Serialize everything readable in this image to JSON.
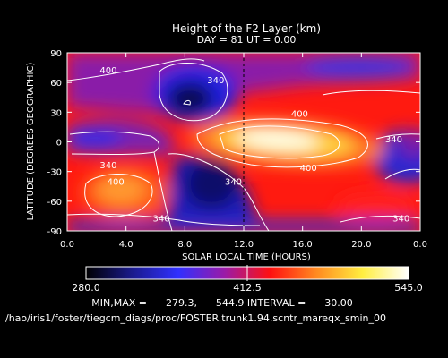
{
  "chart_data": {
    "type": "heatmap",
    "title": "Height of the F2 Layer (km)",
    "subtitle": "DAY =  81   UT =  0.00",
    "xlabel": "SOLAR LOCAL TIME (HOURS)",
    "ylabel": "LATITUDE (DEGREES GEOGRAPHIC)",
    "xlim": [
      0,
      24
    ],
    "ylim": [
      -90,
      90
    ],
    "x_ticks": [
      "0.0",
      "4.0",
      "8.0",
      "12.0",
      "16.0",
      "20.0",
      "0.0"
    ],
    "y_ticks": [
      "90",
      "60",
      "30",
      "0",
      "-30",
      "-60",
      "-90"
    ],
    "x_tick_values": [
      0,
      4,
      8,
      12,
      16,
      20,
      24
    ],
    "y_tick_values": [
      90,
      60,
      30,
      0,
      -30,
      -60,
      -90
    ],
    "marker_line_x": 12,
    "contour_interval": 30,
    "contour_labels": [
      {
        "text": "400",
        "x": 2.8,
        "y": 73
      },
      {
        "text": "340",
        "x": 10.1,
        "y": 63
      },
      {
        "text": "400",
        "x": 15.8,
        "y": 29
      },
      {
        "text": "340",
        "x": 2.8,
        "y": -23
      },
      {
        "text": "400",
        "x": 3.3,
        "y": -40
      },
      {
        "text": "400",
        "x": 16.4,
        "y": -26
      },
      {
        "text": "340",
        "x": 11.3,
        "y": -40
      },
      {
        "text": "340",
        "x": 22.2,
        "y": 3
      },
      {
        "text": "340",
        "x": 6.4,
        "y": -77
      },
      {
        "text": "340",
        "x": 22.7,
        "y": -77
      }
    ],
    "colorbar": {
      "min_label": "280.0",
      "mid_label": "412.5",
      "max_label": "545.0",
      "range": [
        280,
        545
      ],
      "colors": [
        "#000000",
        "#1a1a8c",
        "#3030ff",
        "#9a1aa8",
        "#ff1010",
        "#ff8a20",
        "#ffee40",
        "#ffffff"
      ]
    },
    "stats_line": "MIN,MAX =      279.3,      544.9 INTERVAL =      30.00",
    "footer_path": "/hao/iris1/foster/tiegcm_diags/proc/FOSTER.trunk1.94.scntr_mareqx_smin_00"
  }
}
